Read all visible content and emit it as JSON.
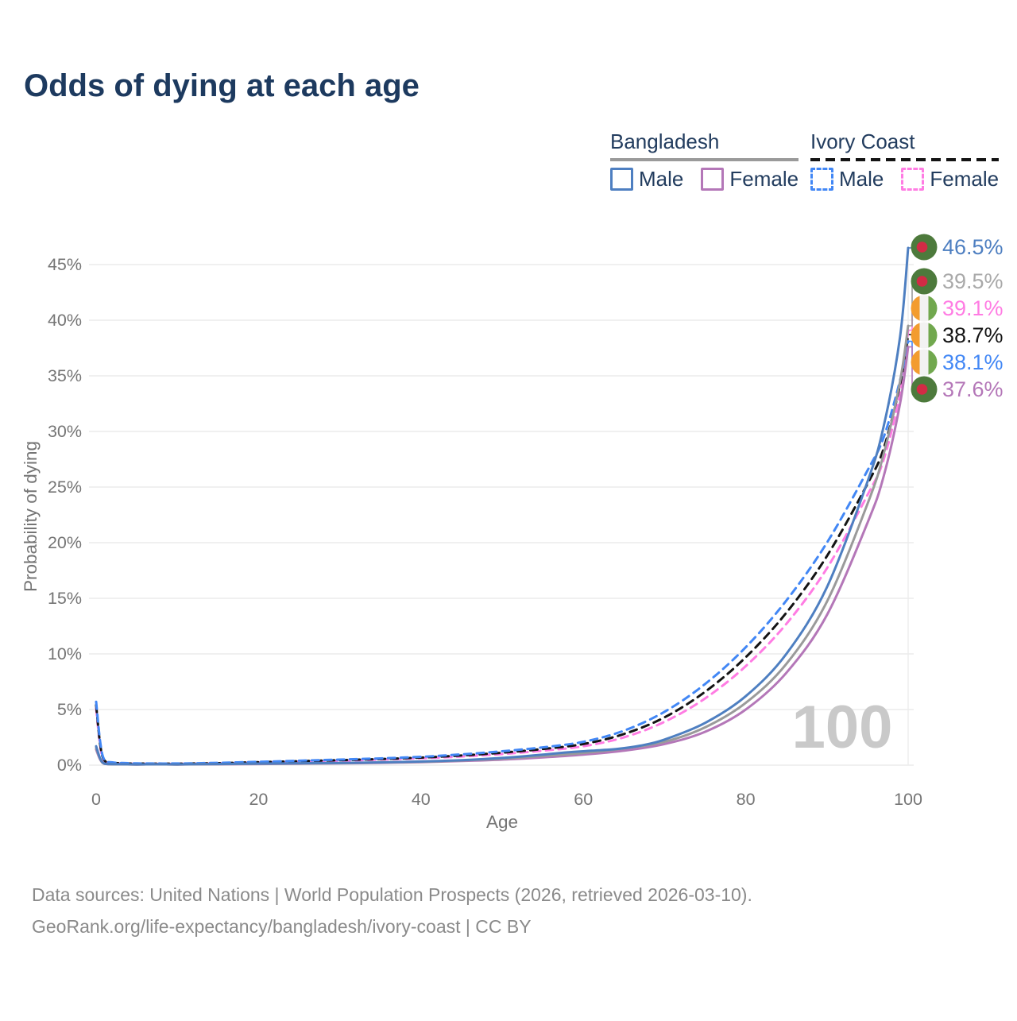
{
  "title": "Odds of dying at each age",
  "watermark": "100",
  "colors": {
    "title_text": "#1d3a5f",
    "legend_text": "#223c5e",
    "axis_text": "#757575",
    "grid": "#ececec",
    "watermark": "#c9c9c9",
    "footer_text": "#8a8a8a",
    "bd_male": "#4e7fc1",
    "bd_female": "#b477b8",
    "bd_all": "#9a9a9a",
    "ci_male": "#4287f5",
    "ci_female": "#ff7ce3",
    "ci_all": "#141414",
    "label_gray": "#a9a9a9",
    "flag_bd_green": "#4d7a3c",
    "flag_bd_red": "#d22b45",
    "flag_ci_orange": "#f39c2f",
    "flag_ci_white": "#f2f2f2",
    "flag_ci_green": "#71a84e"
  },
  "legend": {
    "groups": [
      {
        "name": "Bangladesh",
        "underline": "solid",
        "underline_color": "#9a9a9a",
        "items": [
          {
            "label": "Male",
            "color_key": "bd_male",
            "dash": false
          },
          {
            "label": "Female",
            "color_key": "bd_female",
            "dash": false
          }
        ]
      },
      {
        "name": "Ivory Coast",
        "underline": "dashed",
        "underline_color": "#141414",
        "items": [
          {
            "label": "Male",
            "color_key": "ci_male",
            "dash": true
          },
          {
            "label": "Female",
            "color_key": "ci_female",
            "dash": true
          }
        ]
      }
    ]
  },
  "chart_data": {
    "type": "line",
    "title": "Odds of dying at each age",
    "xlabel": "Age",
    "ylabel": "Probability of dying",
    "xlim": [
      0,
      100
    ],
    "ylim_pct": [
      0,
      47
    ],
    "grid": "horizontal",
    "x_ticks": [
      "0",
      "20",
      "40",
      "60",
      "80",
      "100"
    ],
    "x_tick_values": [
      0,
      20,
      40,
      60,
      80,
      100
    ],
    "y_ticks": [
      "0%",
      "5%",
      "10%",
      "15%",
      "20%",
      "25%",
      "30%",
      "35%",
      "40%",
      "45%"
    ],
    "y_tick_values": [
      0,
      5,
      10,
      15,
      20,
      25,
      30,
      35,
      40,
      45
    ],
    "series": [
      {
        "id": "ivory-coast-female",
        "name": "Ivory Coast Female",
        "color_key": "ci_female",
        "label_color_key": "ci_female",
        "dash": true,
        "flag": "ci",
        "end_label": "39.1%",
        "label_row": 2,
        "points": [
          [
            0,
            5.1
          ],
          [
            0.5,
            1.7
          ],
          [
            1,
            0.4
          ],
          [
            2,
            0.2
          ],
          [
            3,
            0.15
          ],
          [
            5,
            0.13
          ],
          [
            10,
            0.12
          ],
          [
            15,
            0.16
          ],
          [
            20,
            0.24
          ],
          [
            25,
            0.32
          ],
          [
            30,
            0.4
          ],
          [
            35,
            0.5
          ],
          [
            40,
            0.62
          ],
          [
            45,
            0.78
          ],
          [
            50,
            1.0
          ],
          [
            55,
            1.3
          ],
          [
            60,
            1.7
          ],
          [
            65,
            2.5
          ],
          [
            70,
            3.9
          ],
          [
            75,
            6.0
          ],
          [
            80,
            8.9
          ],
          [
            85,
            12.7
          ],
          [
            90,
            17.7
          ],
          [
            95,
            24.3
          ],
          [
            97,
            27.5
          ],
          [
            99,
            33.5
          ],
          [
            100,
            39.1
          ]
        ]
      },
      {
        "id": "ivory-coast-all",
        "name": "Ivory Coast",
        "color_key": "ci_all",
        "label_color_key": "ci_all",
        "dash": true,
        "flag": "ci",
        "end_label": "38.7%",
        "label_row": 3,
        "points": [
          [
            0,
            5.4
          ],
          [
            0.5,
            1.85
          ],
          [
            1,
            0.45
          ],
          [
            2,
            0.22
          ],
          [
            3,
            0.17
          ],
          [
            5,
            0.14
          ],
          [
            10,
            0.135
          ],
          [
            15,
            0.18
          ],
          [
            20,
            0.27
          ],
          [
            25,
            0.36
          ],
          [
            30,
            0.45
          ],
          [
            35,
            0.55
          ],
          [
            40,
            0.68
          ],
          [
            45,
            0.87
          ],
          [
            50,
            1.12
          ],
          [
            55,
            1.45
          ],
          [
            60,
            1.9
          ],
          [
            65,
            2.8
          ],
          [
            70,
            4.3
          ],
          [
            75,
            6.6
          ],
          [
            80,
            9.7
          ],
          [
            85,
            13.7
          ],
          [
            90,
            18.8
          ],
          [
            95,
            25.3
          ],
          [
            97,
            28.5
          ],
          [
            99,
            34.2
          ],
          [
            100,
            38.7
          ]
        ]
      },
      {
        "id": "ivory-coast-male",
        "name": "Ivory Coast Male",
        "color_key": "ci_male",
        "label_color_key": "ci_male",
        "dash": true,
        "flag": "ci",
        "end_label": "38.1%",
        "label_row": 4,
        "points": [
          [
            0,
            5.7
          ],
          [
            0.5,
            2.1
          ],
          [
            1,
            0.5
          ],
          [
            2,
            0.25
          ],
          [
            3,
            0.2
          ],
          [
            5,
            0.16
          ],
          [
            10,
            0.15
          ],
          [
            15,
            0.21
          ],
          [
            20,
            0.3
          ],
          [
            25,
            0.4
          ],
          [
            30,
            0.5
          ],
          [
            35,
            0.61
          ],
          [
            40,
            0.75
          ],
          [
            45,
            0.97
          ],
          [
            50,
            1.25
          ],
          [
            55,
            1.6
          ],
          [
            60,
            2.1
          ],
          [
            65,
            3.1
          ],
          [
            70,
            4.8
          ],
          [
            75,
            7.3
          ],
          [
            80,
            10.6
          ],
          [
            85,
            14.8
          ],
          [
            90,
            20.0
          ],
          [
            95,
            26.5
          ],
          [
            97,
            29.5
          ],
          [
            99,
            34.6
          ],
          [
            100,
            38.1
          ]
        ]
      },
      {
        "id": "bangladesh-female",
        "name": "Bangladesh Female",
        "color_key": "bd_female",
        "label_color_key": "bd_female",
        "dash": false,
        "flag": "bd",
        "end_label": "37.6%",
        "label_row": 5,
        "points": [
          [
            0,
            1.4
          ],
          [
            0.5,
            0.5
          ],
          [
            1,
            0.12
          ],
          [
            2,
            0.07
          ],
          [
            5,
            0.05
          ],
          [
            10,
            0.05
          ],
          [
            15,
            0.08
          ],
          [
            20,
            0.1
          ],
          [
            25,
            0.13
          ],
          [
            30,
            0.16
          ],
          [
            35,
            0.21
          ],
          [
            40,
            0.27
          ],
          [
            45,
            0.37
          ],
          [
            50,
            0.5
          ],
          [
            55,
            0.7
          ],
          [
            60,
            0.95
          ],
          [
            65,
            1.3
          ],
          [
            70,
            1.9
          ],
          [
            75,
            3.0
          ],
          [
            80,
            5.0
          ],
          [
            85,
            8.3
          ],
          [
            90,
            13.5
          ],
          [
            95,
            21.8
          ],
          [
            97,
            26.0
          ],
          [
            99,
            32.5
          ],
          [
            100,
            37.6
          ]
        ]
      },
      {
        "id": "bangladesh-all",
        "name": "Bangladesh",
        "color_key": "bd_all",
        "label_color_key": "label_gray",
        "dash": false,
        "flag": "bd",
        "end_label": "39.5%",
        "label_row": 1,
        "points": [
          [
            0,
            1.55
          ],
          [
            0.5,
            0.55
          ],
          [
            1,
            0.13
          ],
          [
            2,
            0.08
          ],
          [
            5,
            0.06
          ],
          [
            10,
            0.06
          ],
          [
            15,
            0.09
          ],
          [
            20,
            0.12
          ],
          [
            25,
            0.15
          ],
          [
            30,
            0.18
          ],
          [
            35,
            0.24
          ],
          [
            40,
            0.3
          ],
          [
            45,
            0.42
          ],
          [
            50,
            0.58
          ],
          [
            55,
            0.82
          ],
          [
            60,
            1.1
          ],
          [
            65,
            1.5
          ],
          [
            70,
            2.1
          ],
          [
            75,
            3.4
          ],
          [
            80,
            5.6
          ],
          [
            85,
            9.1
          ],
          [
            90,
            14.7
          ],
          [
            95,
            23.5
          ],
          [
            97,
            28.0
          ],
          [
            99,
            34.5
          ],
          [
            100,
            39.5
          ]
        ]
      },
      {
        "id": "bangladesh-male",
        "name": "Bangladesh Male",
        "color_key": "bd_male",
        "label_color_key": "bd_male",
        "dash": false,
        "flag": "bd",
        "end_label": "46.5%",
        "label_row": 0,
        "points": [
          [
            0,
            1.7
          ],
          [
            0.5,
            0.6
          ],
          [
            1,
            0.15
          ],
          [
            2,
            0.09
          ],
          [
            5,
            0.07
          ],
          [
            10,
            0.07
          ],
          [
            15,
            0.1
          ],
          [
            20,
            0.14
          ],
          [
            25,
            0.17
          ],
          [
            30,
            0.2
          ],
          [
            35,
            0.25
          ],
          [
            40,
            0.33
          ],
          [
            45,
            0.45
          ],
          [
            50,
            0.65
          ],
          [
            55,
            0.95
          ],
          [
            58,
            1.15
          ],
          [
            61,
            1.3
          ],
          [
            64,
            1.45
          ],
          [
            67,
            1.75
          ],
          [
            70,
            2.3
          ],
          [
            75,
            3.8
          ],
          [
            80,
            6.2
          ],
          [
            85,
            10.0
          ],
          [
            90,
            16.0
          ],
          [
            95,
            25.5
          ],
          [
            97,
            30.5
          ],
          [
            99,
            38.5
          ],
          [
            100,
            46.5
          ]
        ]
      }
    ]
  },
  "footer": {
    "line1": "Data sources: United Nations | World Population Prospects (2026, retrieved 2026-03-10).",
    "line2": "GeoRank.org/life-expectancy/bangladesh/ivory-coast | CC BY"
  }
}
